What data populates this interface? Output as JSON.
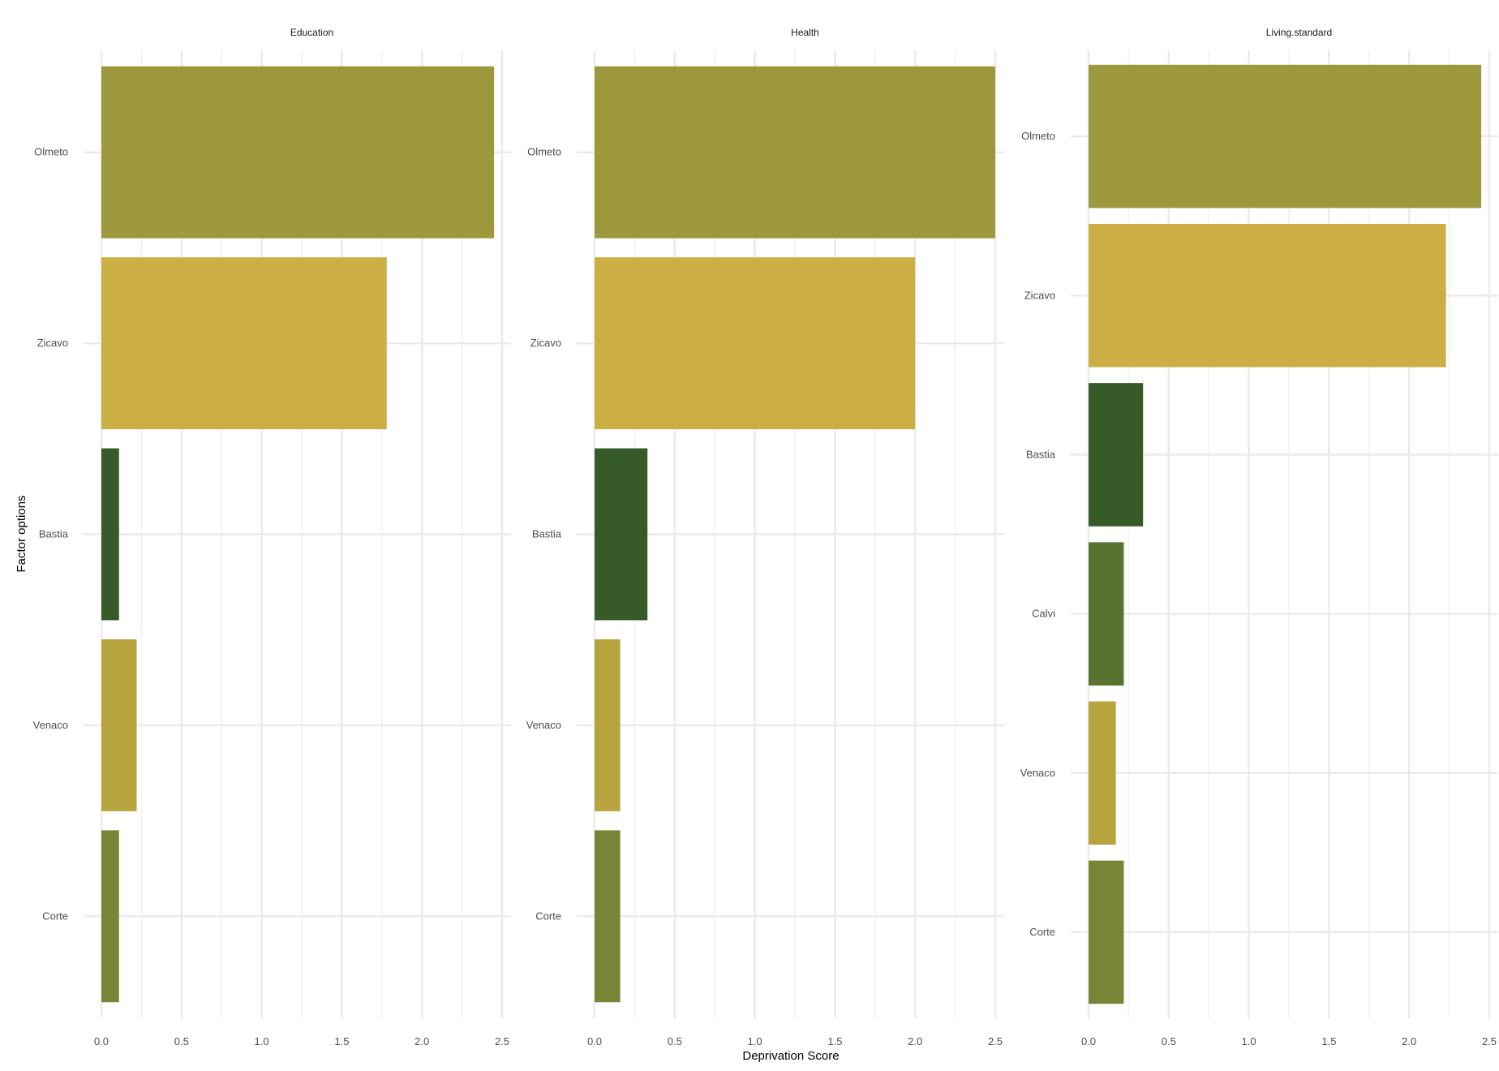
{
  "chart_data": {
    "type": "bar",
    "orientation": "horizontal",
    "xlabel": "Deprivation Score",
    "ylabel": "Factor options",
    "xlim": [
      0,
      2.5
    ],
    "x_ticks": [
      "0.0",
      "0.5",
      "1.0",
      "1.5",
      "2.0",
      "2.5"
    ],
    "grid": true,
    "colors": {
      "Olmeto": "#9c983b",
      "Zicavo": "#cbae44",
      "Bastia": "#365a28",
      "Calvi": "#58722f",
      "Venaco": "#b7a43e",
      "Corte": "#7a8436"
    },
    "facets": [
      {
        "title": "Education",
        "categories": [
          "Olmeto",
          "Zicavo",
          "Bastia",
          "Venaco",
          "Corte"
        ],
        "values": [
          2.45,
          1.78,
          0.11,
          0.22,
          0.11
        ]
      },
      {
        "title": "Health",
        "categories": [
          "Olmeto",
          "Zicavo",
          "Bastia",
          "Venaco",
          "Corte"
        ],
        "values": [
          2.5,
          2.0,
          0.33,
          0.16,
          0.16
        ]
      },
      {
        "title": "Living.standard",
        "categories": [
          "Olmeto",
          "Zicavo",
          "Bastia",
          "Calvi",
          "Venaco",
          "Corte"
        ],
        "values": [
          2.45,
          2.23,
          0.34,
          0.22,
          0.17,
          0.22
        ]
      }
    ]
  }
}
